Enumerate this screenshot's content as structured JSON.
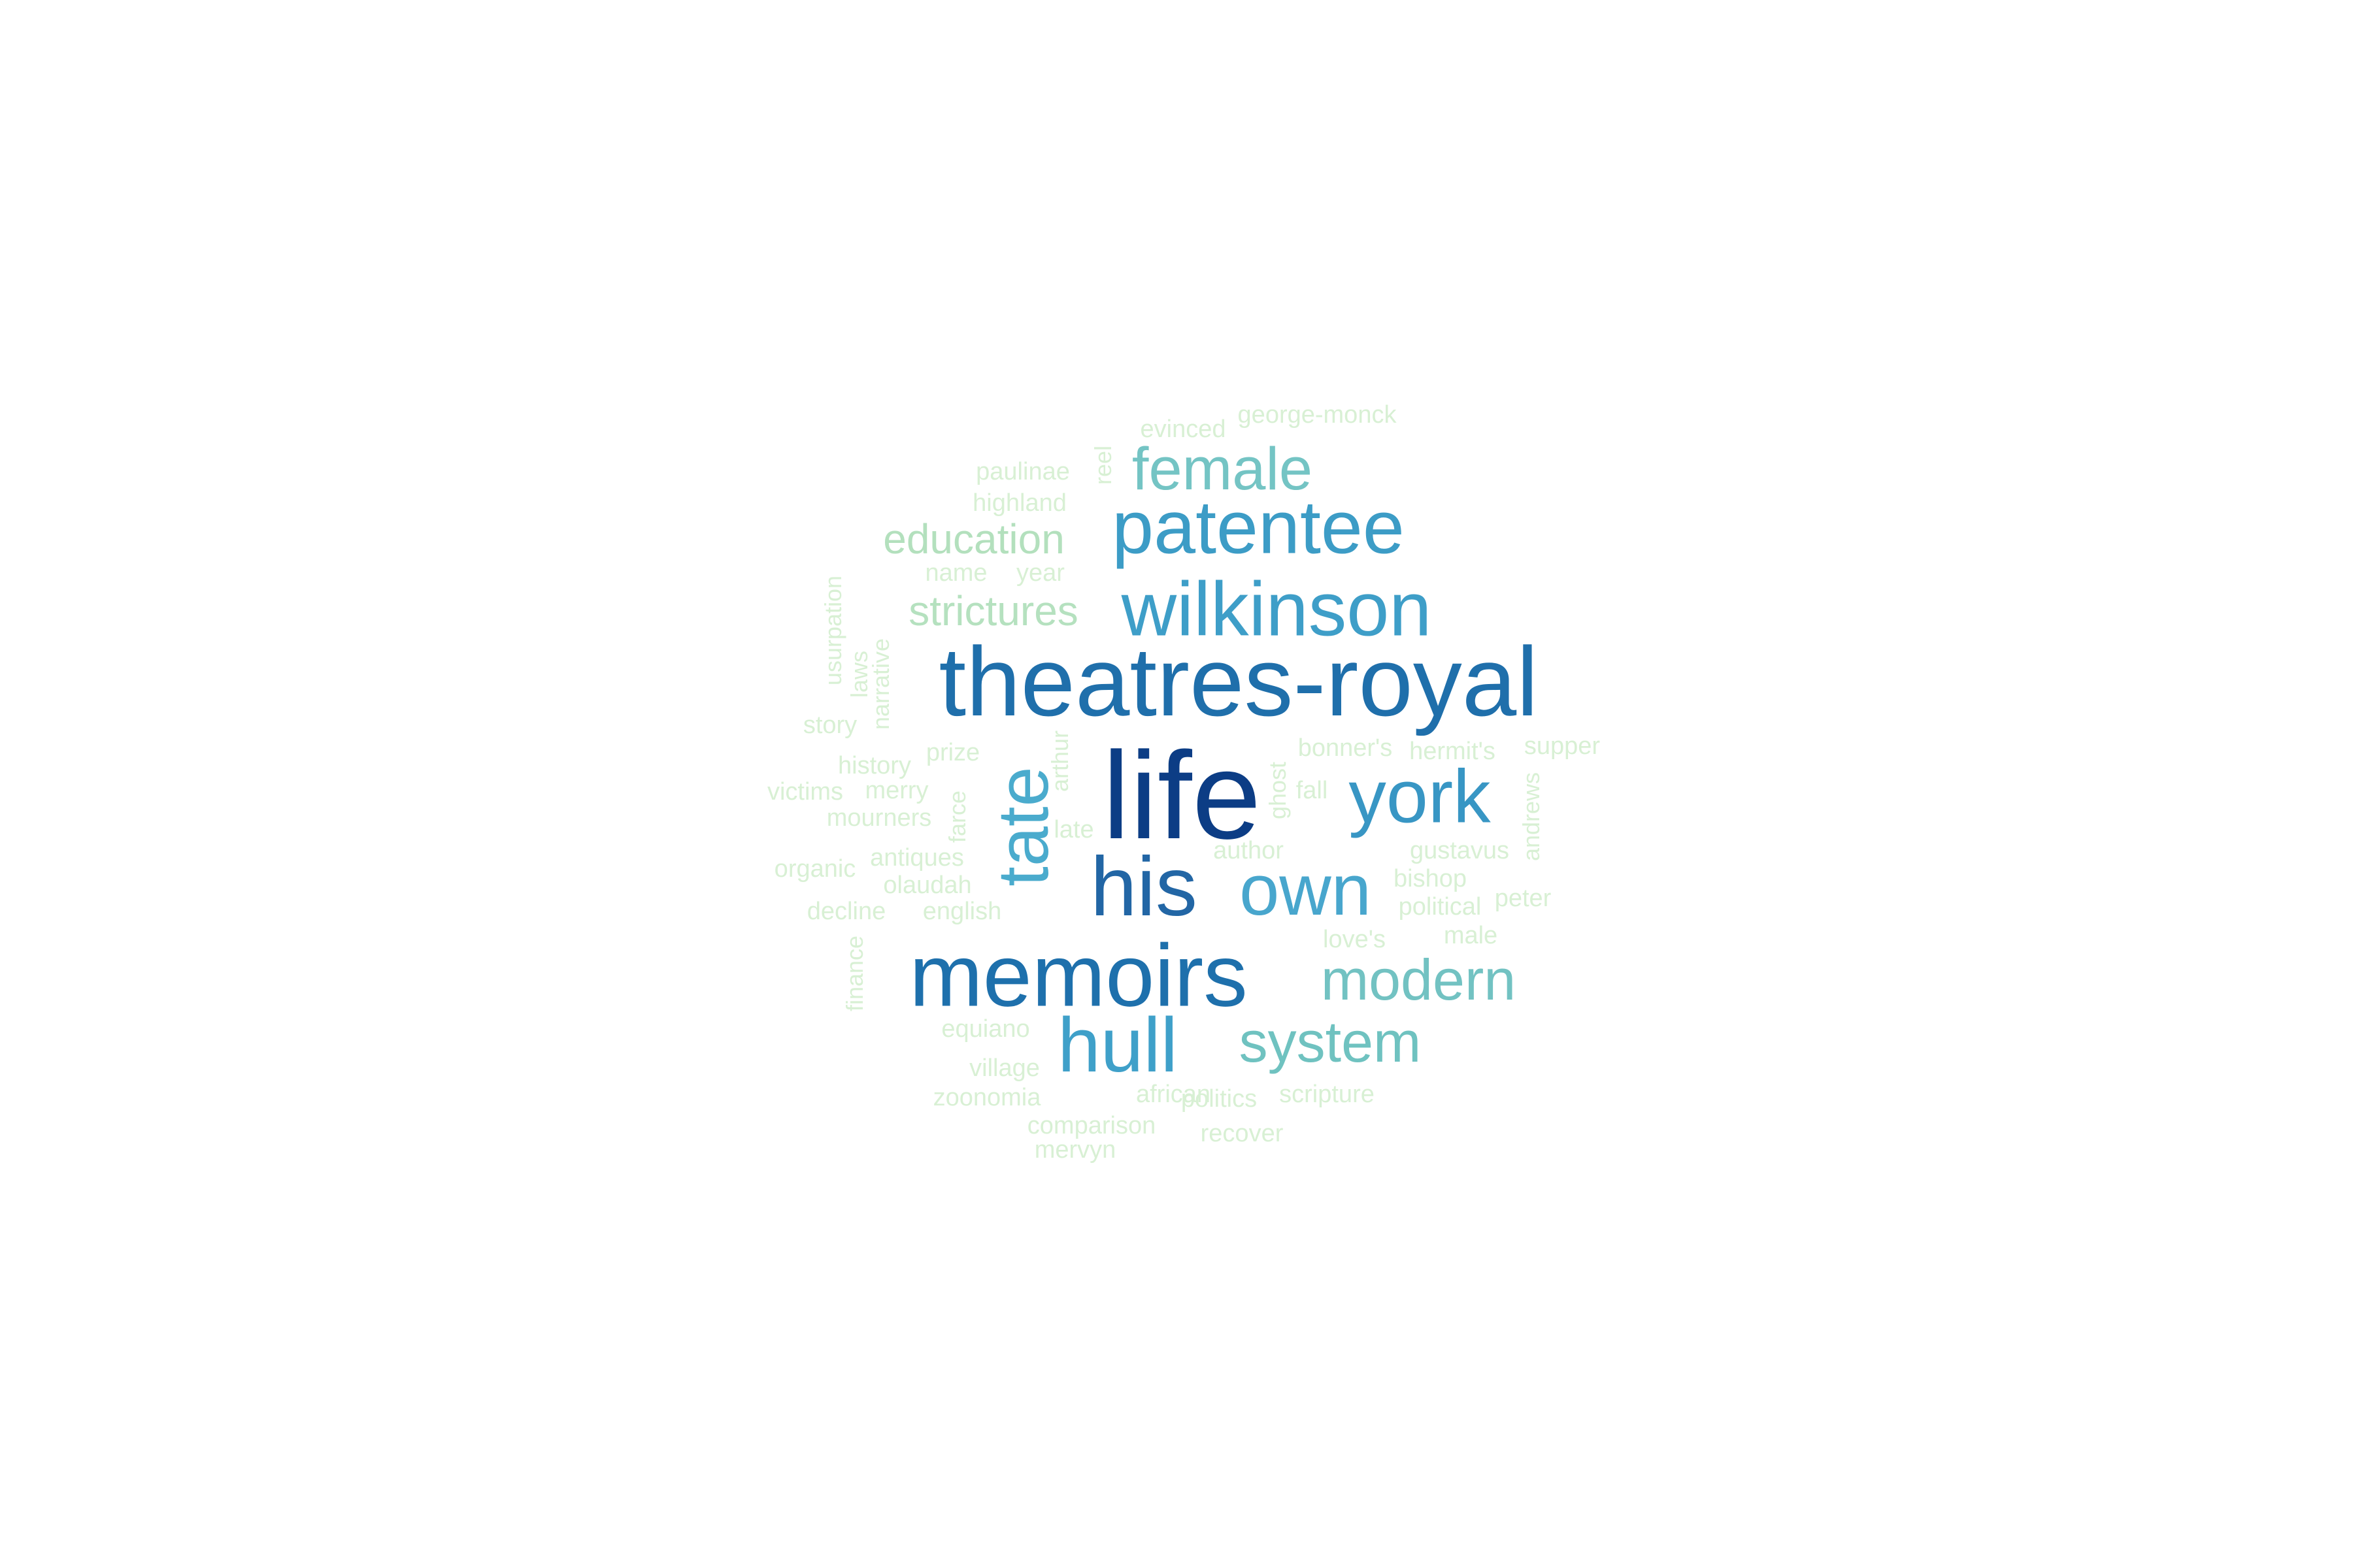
{
  "palette": [
    "#08306b",
    "#1c6aa6",
    "#2b8cbe",
    "#4eb3d3",
    "#7bccc4",
    "#a8ddb5",
    "#ccebc5",
    "#e0f3db"
  ],
  "words": [
    {
      "text": "life",
      "color": "#0c3d85",
      "rotated": false
    },
    {
      "text": "theatres-royal",
      "color": "#1f6fab",
      "rotated": false
    },
    {
      "text": "memoirs",
      "color": "#1e70ac",
      "rotated": false
    },
    {
      "text": "his",
      "color": "#2266a5",
      "rotated": false
    },
    {
      "text": "york",
      "color": "#3896c4",
      "rotated": false
    },
    {
      "text": "wilkinson",
      "color": "#3e9ec8",
      "rotated": false
    },
    {
      "text": "patentee",
      "color": "#3c9cc6",
      "rotated": false
    },
    {
      "text": "own",
      "color": "#48a6cd",
      "rotated": false
    },
    {
      "text": "hull",
      "color": "#3fa0c9",
      "rotated": false
    },
    {
      "text": "tate",
      "color": "#4aabcd",
      "rotated": true
    },
    {
      "text": "female",
      "color": "#74c4c4",
      "rotated": false
    },
    {
      "text": "modern",
      "color": "#72c2c2",
      "rotated": false
    },
    {
      "text": "system",
      "color": "#6fc2c0",
      "rotated": false
    },
    {
      "text": "education",
      "color": "#b3e0bd",
      "rotated": false
    },
    {
      "text": "strictures",
      "color": "#b5e1bf",
      "rotated": false
    },
    {
      "text": "george-monck",
      "color": "#d8f0d4",
      "rotated": false
    },
    {
      "text": "evinced",
      "color": "#d8f0d4",
      "rotated": false
    },
    {
      "text": "paulinae",
      "color": "#d8f0d4",
      "rotated": false
    },
    {
      "text": "reel",
      "color": "#d8f0d4",
      "rotated": true
    },
    {
      "text": "highland",
      "color": "#d8f0d4",
      "rotated": false
    },
    {
      "text": "name",
      "color": "#d8f0d4",
      "rotated": false
    },
    {
      "text": "year",
      "color": "#d8f0d4",
      "rotated": false
    },
    {
      "text": "usurpation",
      "color": "#d8f0d4",
      "rotated": true
    },
    {
      "text": "laws",
      "color": "#d8f0d4",
      "rotated": true
    },
    {
      "text": "narrative",
      "color": "#d8f0d4",
      "rotated": true
    },
    {
      "text": "story",
      "color": "#d8f0d4",
      "rotated": false
    },
    {
      "text": "history",
      "color": "#d8f0d4",
      "rotated": false
    },
    {
      "text": "prize",
      "color": "#d8f0d4",
      "rotated": false
    },
    {
      "text": "arthur",
      "color": "#d8f0d4",
      "rotated": true
    },
    {
      "text": "victims",
      "color": "#d8f0d4",
      "rotated": false
    },
    {
      "text": "merry",
      "color": "#d8f0d4",
      "rotated": false
    },
    {
      "text": "mourners",
      "color": "#d8f0d4",
      "rotated": false
    },
    {
      "text": "farce",
      "color": "#d8f0d4",
      "rotated": true
    },
    {
      "text": "late",
      "color": "#d8f0d4",
      "rotated": false
    },
    {
      "text": "antiques",
      "color": "#d8f0d4",
      "rotated": false
    },
    {
      "text": "organic",
      "color": "#d8f0d4",
      "rotated": false
    },
    {
      "text": "olaudah",
      "color": "#d8f0d4",
      "rotated": false
    },
    {
      "text": "decline",
      "color": "#d8f0d4",
      "rotated": false
    },
    {
      "text": "english",
      "color": "#d8f0d4",
      "rotated": false
    },
    {
      "text": "finance",
      "color": "#d8f0d4",
      "rotated": true
    },
    {
      "text": "equiano",
      "color": "#d8f0d4",
      "rotated": false
    },
    {
      "text": "village",
      "color": "#d8f0d4",
      "rotated": false
    },
    {
      "text": "zoonomia",
      "color": "#d8f0d4",
      "rotated": false
    },
    {
      "text": "african",
      "color": "#d8f0d4",
      "rotated": false
    },
    {
      "text": "politics",
      "color": "#d8f0d4",
      "rotated": false
    },
    {
      "text": "scripture",
      "color": "#d8f0d4",
      "rotated": false
    },
    {
      "text": "comparison",
      "color": "#d8f0d4",
      "rotated": false
    },
    {
      "text": "recover",
      "color": "#d8f0d4",
      "rotated": false
    },
    {
      "text": "mervyn",
      "color": "#d8f0d4",
      "rotated": false
    },
    {
      "text": "bonner's",
      "color": "#d8f0d4",
      "rotated": false
    },
    {
      "text": "hermit's",
      "color": "#d8f0d4",
      "rotated": false
    },
    {
      "text": "supper",
      "color": "#d8f0d4",
      "rotated": false
    },
    {
      "text": "ghost",
      "color": "#d8f0d4",
      "rotated": true
    },
    {
      "text": "fall",
      "color": "#d8f0d4",
      "rotated": false
    },
    {
      "text": "andrews",
      "color": "#d8f0d4",
      "rotated": true
    },
    {
      "text": "author",
      "color": "#d8f0d4",
      "rotated": false
    },
    {
      "text": "gustavus",
      "color": "#d8f0d4",
      "rotated": false
    },
    {
      "text": "bishop",
      "color": "#d8f0d4",
      "rotated": false
    },
    {
      "text": "political",
      "color": "#d8f0d4",
      "rotated": false
    },
    {
      "text": "peter",
      "color": "#d8f0d4",
      "rotated": false
    },
    {
      "text": "love's",
      "color": "#d8f0d4",
      "rotated": false
    },
    {
      "text": "male",
      "color": "#d8f0d4",
      "rotated": false
    }
  ]
}
